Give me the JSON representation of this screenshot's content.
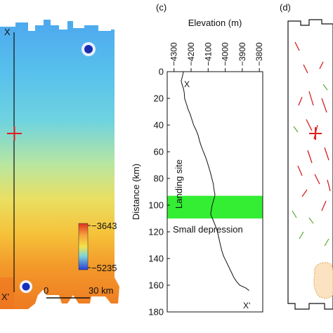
{
  "panel_labels": {
    "c": "(c)",
    "d": "(d)"
  },
  "map_a": {
    "label_x": "X",
    "label_x_prime": "X'",
    "colorbar_max": "−3643",
    "colorbar_min": "−5235",
    "scale_start": "0",
    "scale_end": "30 km",
    "colors": {
      "high": "#e03020",
      "mid": "#f4e24a",
      "low": "#2a3fd8"
    }
  },
  "chart_data": {
    "type": "line",
    "xlabel": "Elevation (m)",
    "ylabel": "Distance (km)",
    "x_ticks": [
      -4300,
      -4200,
      -4100,
      -4000,
      -3900,
      -3800
    ],
    "y_ticks": [
      0,
      20,
      40,
      60,
      80,
      100,
      120,
      140,
      160,
      180
    ],
    "xlim": [
      -4340,
      -3780
    ],
    "ylim": [
      0,
      180
    ],
    "x_reversed": true,
    "annotations": {
      "start": "X",
      "end": "X'",
      "landing": "Landing site",
      "depression": "Small depression"
    },
    "depression_band_km": [
      93,
      110
    ],
    "series": [
      {
        "points": [
          [
            0,
            -4245
          ],
          [
            3,
            -4250
          ],
          [
            7,
            -4258
          ],
          [
            10,
            -4252
          ],
          [
            13,
            -4244
          ],
          [
            16,
            -4240
          ],
          [
            20,
            -4238
          ],
          [
            24,
            -4228
          ],
          [
            28,
            -4218
          ],
          [
            32,
            -4205
          ],
          [
            36,
            -4195
          ],
          [
            40,
            -4185
          ],
          [
            44,
            -4170
          ],
          [
            48,
            -4158
          ],
          [
            52,
            -4150
          ],
          [
            56,
            -4140
          ],
          [
            60,
            -4128
          ],
          [
            64,
            -4115
          ],
          [
            68,
            -4105
          ],
          [
            72,
            -4095
          ],
          [
            76,
            -4086
          ],
          [
            80,
            -4078
          ],
          [
            84,
            -4070
          ],
          [
            88,
            -4066
          ],
          [
            92,
            -4060
          ],
          [
            95,
            -4065
          ],
          [
            98,
            -4072
          ],
          [
            101,
            -4078
          ],
          [
            104,
            -4082
          ],
          [
            107,
            -4085
          ],
          [
            110,
            -4075
          ],
          [
            114,
            -4062
          ],
          [
            118,
            -4050
          ],
          [
            122,
            -4042
          ],
          [
            126,
            -4035
          ],
          [
            130,
            -4028
          ],
          [
            134,
            -4020
          ],
          [
            138,
            -4010
          ],
          [
            142,
            -3995
          ],
          [
            146,
            -3980
          ],
          [
            150,
            -3965
          ],
          [
            154,
            -3950
          ],
          [
            157,
            -3935
          ],
          [
            160,
            -3915
          ],
          [
            162,
            -3880
          ],
          [
            164,
            -3860
          ]
        ]
      }
    ]
  }
}
